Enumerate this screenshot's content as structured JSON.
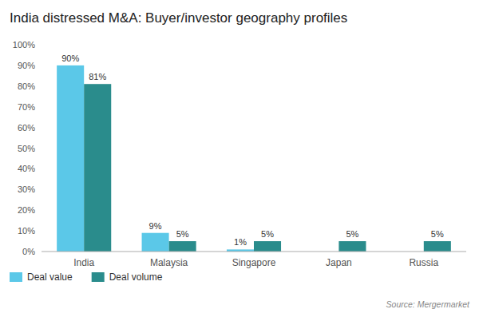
{
  "chart_data": {
    "type": "bar",
    "title": "India distressed M&A: Buyer/investor geography profiles",
    "source": "Source: Mergermarket",
    "categories": [
      "India",
      "Malaysia",
      "Singapore",
      "Japan",
      "Russia"
    ],
    "series": [
      {
        "name": "Deal value",
        "color": "#5BC8E8",
        "values": [
          90,
          9,
          1,
          0,
          0
        ],
        "value_labels": [
          "90%",
          "9%",
          "1%",
          null,
          null
        ]
      },
      {
        "name": "Deal volume",
        "color": "#2A8C8C",
        "values": [
          81,
          5,
          5,
          5,
          5
        ],
        "value_labels": [
          "81%",
          "5%",
          "5%",
          "5%",
          "5%"
        ]
      }
    ],
    "ylim": [
      0,
      100
    ],
    "yticks": [
      {
        "value": 0,
        "label": "0%"
      },
      {
        "value": 10,
        "label": "10%"
      },
      {
        "value": 20,
        "label": "20%"
      },
      {
        "value": 30,
        "label": "30%"
      },
      {
        "value": 40,
        "label": "40%"
      },
      {
        "value": 50,
        "label": "50%"
      },
      {
        "value": 60,
        "label": "60%"
      },
      {
        "value": 70,
        "label": "70%"
      },
      {
        "value": 80,
        "label": "80%"
      },
      {
        "value": 90,
        "label": "90%"
      },
      {
        "value": 100,
        "label": "100%"
      }
    ],
    "grid": false,
    "legend": "bottom",
    "data_labels": true
  }
}
